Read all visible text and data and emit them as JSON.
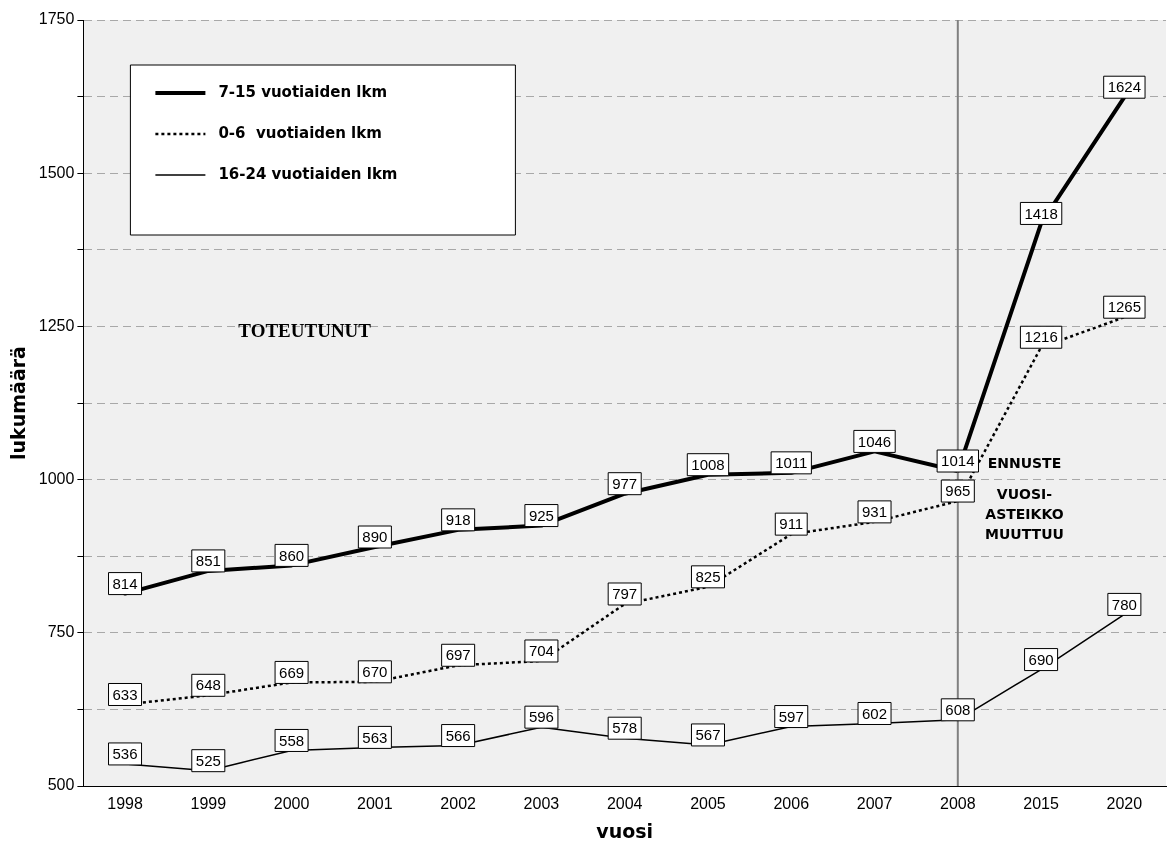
{
  "chart_data": {
    "type": "line",
    "xlabel": "vuosi",
    "ylabel": "lukumäärä",
    "categories": [
      "1998",
      "1999",
      "2000",
      "2001",
      "2002",
      "2003",
      "2004",
      "2005",
      "2006",
      "2007",
      "2008",
      "2015",
      "2020"
    ],
    "series": [
      {
        "name": "7-15 vuotiaiden lkm",
        "color": "#000000",
        "line_style": "solid",
        "values": [
          814,
          851,
          860,
          890,
          918,
          925,
          977,
          1008,
          1011,
          1046,
          1014,
          1418,
          1624
        ]
      },
      {
        "name": "0-6  vuotiaiden lkm",
        "color": "#000000",
        "line_style": "dotted",
        "values": [
          633,
          648,
          669,
          670,
          697,
          704,
          797,
          825,
          911,
          931,
          965,
          1216,
          1265
        ]
      },
      {
        "name": "16-24 vuotiaiden lkm",
        "color": "#000000",
        "line_style": "solid",
        "values": [
          536,
          525,
          558,
          563,
          566,
          596,
          578,
          567,
          597,
          602,
          608,
          690,
          780
        ]
      }
    ],
    "ylim": [
      500,
      1750
    ],
    "yticks": [
      500,
      {
        "value": 625,
        "label": null
      },
      750,
      {
        "value": 875,
        "label": null
      },
      1000,
      {
        "value": 1125,
        "label": null
      },
      1250,
      {
        "value": 1375,
        "label": null
      },
      1500,
      {
        "value": 1625,
        "label": null
      },
      1750
    ],
    "grid": "y",
    "legend": "top left",
    "marker": "none",
    "data_labels": true,
    "ref_lines": [
      {
        "axis": "x",
        "value": "2008",
        "color": "#808080"
      }
    ],
    "annotations": [
      "TOTEUTUNUT",
      "ENNUSTE",
      "VUOSI-ASTEIKKO MUUTTUU"
    ]
  }
}
